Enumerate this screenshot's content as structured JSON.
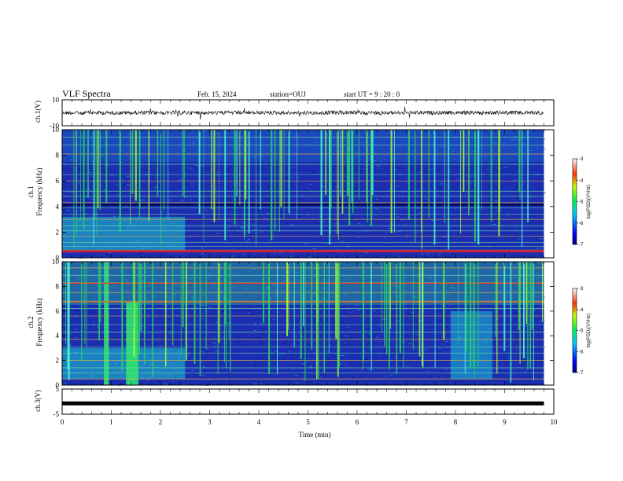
{
  "header": {
    "title": "VLF Spectra",
    "date": "Feb. 15, 2024",
    "station": "station=OUJ",
    "start_ut": "start  UT  =   9  : 20 : 0"
  },
  "panels": {
    "ch1_label": "ch.1(V)",
    "spec1_label_a": "ch.1",
    "spec1_label_b": "Frequency  (kHz)",
    "spec2_label_a": "ch.2",
    "spec2_label_b": "Frequency  (kHz)",
    "ch3_label": "ch.3(V)"
  },
  "colorbar": {
    "label": "log(PSD)(V²/Hz)",
    "ticks": [
      "-3",
      "-4",
      "-5",
      "-6",
      "-7"
    ]
  },
  "chart_data": [
    {
      "type": "line",
      "name": "ch.1 waveform",
      "ylabel": "ch.1(V)",
      "ylim": [
        -10,
        10
      ],
      "yticks": [
        "10",
        "-10"
      ],
      "x_range_min": [
        0,
        9.8
      ],
      "approx_level": 0
    },
    {
      "type": "heatmap",
      "name": "ch.1 spectrogram",
      "ylabel": "Frequency  (kHz)",
      "ylim": [
        0,
        10
      ],
      "yticks": [
        "0",
        "2",
        "4",
        "6",
        "8",
        "10"
      ],
      "colorscale": [
        "#00007f",
        "#0000ff",
        "#00ffff",
        "#00ff00",
        "#ffff00",
        "#ff0000",
        "#ffffff"
      ],
      "zlim": [
        -7,
        -3
      ],
      "colors": {
        "background": "#1b2db0",
        "emission": "#27d36a",
        "line": "#f5b73a"
      }
    },
    {
      "type": "heatmap",
      "name": "ch.2 spectrogram",
      "ylabel": "Frequency  (kHz)",
      "ylim": [
        0,
        10
      ],
      "yticks": [
        "0",
        "2",
        "4",
        "6",
        "8",
        "10"
      ],
      "zlim": [
        -7,
        -3
      ]
    },
    {
      "type": "line",
      "name": "ch.3 waveform",
      "ylabel": "ch.3(V)",
      "ylim": [
        -5,
        5
      ],
      "yticks": [
        "5",
        "-5"
      ],
      "approx_level": -0.7
    }
  ],
  "xaxis": {
    "label": "Time  (min)",
    "ticks": [
      "0",
      "1",
      "2",
      "3",
      "4",
      "5",
      "6",
      "7",
      "8",
      "9",
      "10"
    ],
    "xlim": [
      0,
      10
    ]
  }
}
